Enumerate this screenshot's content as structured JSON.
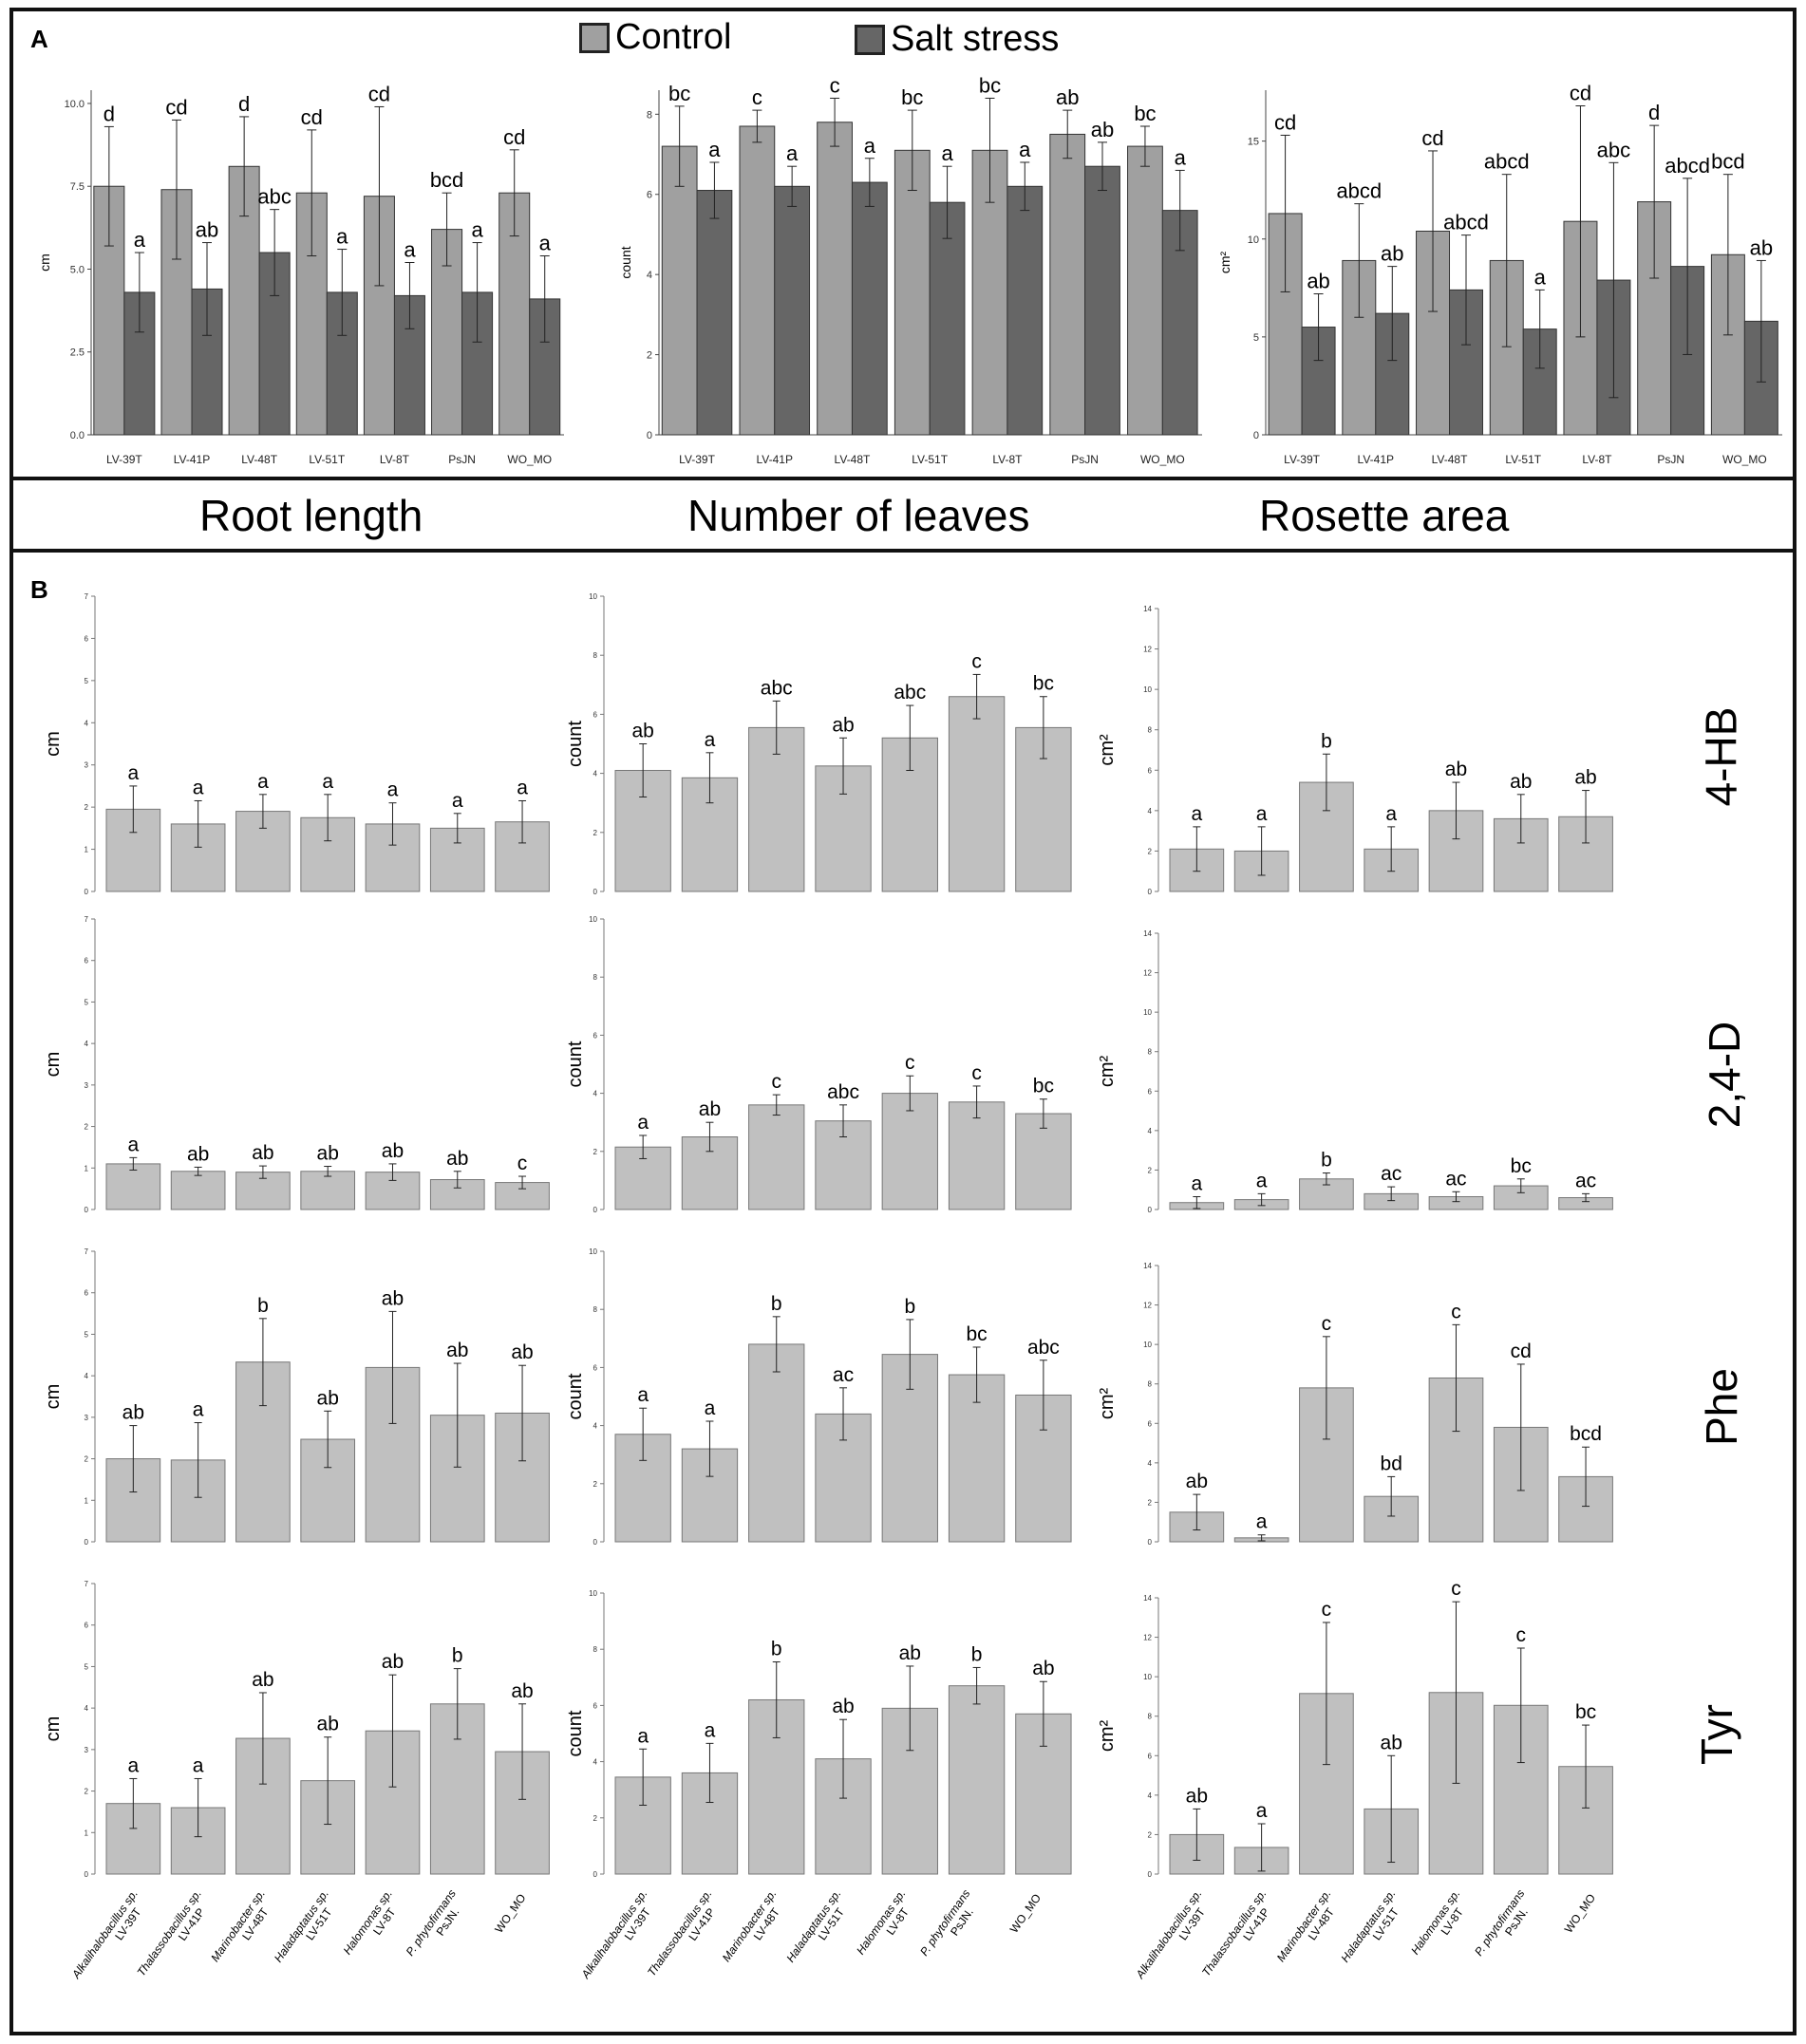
{
  "panel_a": {
    "letter": "A",
    "legend": {
      "control": "Control",
      "salt": "Salt stress"
    },
    "colors": {
      "control": "#a0a0a0",
      "salt": "#666666",
      "edge": "#333333"
    }
  },
  "titles": {
    "root": "Root length",
    "leaves": "Number of leaves",
    "rosette": "Rosette area"
  },
  "panel_b": {
    "letter": "B",
    "rows": [
      "4-HB",
      "2,4-D",
      "Phe",
      "Tyr"
    ],
    "colors": {
      "bar": "#c0c0c0",
      "edge": "#777777"
    }
  },
  "chart_data": [
    {
      "id": "A-root",
      "type": "bar",
      "title": "",
      "ylabel": "cm",
      "ylim": [
        0,
        10.4
      ],
      "yticks": [
        "0.0",
        "2.5",
        "5.0",
        "7.5",
        "10.0"
      ],
      "ytick_values": [
        0,
        2.5,
        5,
        7.5,
        10
      ],
      "categories": [
        "LV-39T",
        "LV-41P",
        "LV-48T",
        "LV-51T",
        "LV-8T",
        "PsJN",
        "WO_MO"
      ],
      "series": [
        {
          "name": "Control",
          "values": [
            7.5,
            7.4,
            8.1,
            7.3,
            7.2,
            6.2,
            7.3
          ],
          "errors": [
            1.8,
            2.1,
            1.5,
            1.9,
            2.7,
            1.1,
            1.3
          ],
          "labels": [
            "d",
            "cd",
            "d",
            "cd",
            "cd",
            "bcd",
            "cd"
          ]
        },
        {
          "name": "Salt stress",
          "values": [
            4.3,
            4.4,
            5.5,
            4.3,
            4.2,
            4.3,
            4.1
          ],
          "errors": [
            1.2,
            1.4,
            1.3,
            1.3,
            1.0,
            1.5,
            1.3
          ],
          "labels": [
            "a",
            "ab",
            "abc",
            "a",
            "a",
            "a",
            "a"
          ]
        }
      ]
    },
    {
      "id": "A-leaves",
      "type": "bar",
      "title": "",
      "ylabel": "count",
      "ylim": [
        0,
        8.6
      ],
      "yticks": [
        "0",
        "2",
        "4",
        "6",
        "8"
      ],
      "ytick_values": [
        0,
        2,
        4,
        6,
        8
      ],
      "categories": [
        "LV-39T",
        "LV-41P",
        "LV-48T",
        "LV-51T",
        "LV-8T",
        "PsJN",
        "WO_MO"
      ],
      "series": [
        {
          "name": "Control",
          "values": [
            7.2,
            7.7,
            7.8,
            7.1,
            7.1,
            7.5,
            7.2
          ],
          "errors": [
            1.0,
            0.4,
            0.6,
            1.0,
            1.3,
            0.6,
            0.5
          ],
          "labels": [
            "bc",
            "c",
            "c",
            "bc",
            "bc",
            "ab",
            "bc"
          ]
        },
        {
          "name": "Salt stress",
          "values": [
            6.1,
            6.2,
            6.3,
            5.8,
            6.2,
            6.7,
            5.6
          ],
          "errors": [
            0.7,
            0.5,
            0.6,
            0.9,
            0.6,
            0.6,
            1.0
          ],
          "labels": [
            "a",
            "a",
            "a",
            "a",
            "a",
            "ab",
            "a"
          ]
        }
      ]
    },
    {
      "id": "A-rosette",
      "type": "bar",
      "title": "",
      "ylabel": "cm²",
      "ylim": [
        0,
        17.6
      ],
      "yticks": [
        "0",
        "5",
        "10",
        "15"
      ],
      "ytick_values": [
        0,
        5,
        10,
        15
      ],
      "categories": [
        "LV-39T",
        "LV-41P",
        "LV-48T",
        "LV-51T",
        "LV-8T",
        "PsJN",
        "WO_MO"
      ],
      "series": [
        {
          "name": "Control",
          "values": [
            11.3,
            8.9,
            10.4,
            8.9,
            10.9,
            11.9,
            9.2
          ],
          "errors": [
            4.0,
            2.9,
            4.1,
            4.4,
            5.9,
            3.9,
            4.1
          ],
          "labels": [
            "cd",
            "abcd",
            "cd",
            "abcd",
            "cd",
            "d",
            "bcd"
          ]
        },
        {
          "name": "Salt stress",
          "values": [
            5.5,
            6.2,
            7.4,
            5.4,
            7.9,
            8.6,
            5.8
          ],
          "errors": [
            1.7,
            2.4,
            2.8,
            2.0,
            6.0,
            4.5,
            3.1
          ],
          "labels": [
            "ab",
            "ab",
            "abcd",
            "a",
            "abc",
            "abcd",
            "ab"
          ]
        }
      ]
    },
    {
      "id": "B-4HB-root",
      "type": "bar",
      "ylabel": "cm",
      "ylim": [
        0,
        7
      ],
      "yticks": [
        "0",
        "1",
        "2",
        "3",
        "4",
        "5",
        "6",
        "7"
      ],
      "ytick_values": [
        0,
        1,
        2,
        3,
        4,
        5,
        6,
        7
      ],
      "values": [
        1.95,
        1.6,
        1.9,
        1.75,
        1.6,
        1.5,
        1.65
      ],
      "errors": [
        0.55,
        0.55,
        0.4,
        0.55,
        0.5,
        0.35,
        0.5
      ],
      "labels": [
        "a",
        "a",
        "a",
        "a",
        "a",
        "a",
        "a"
      ]
    },
    {
      "id": "B-4HB-leaves",
      "type": "bar",
      "ylabel": "count",
      "ylim": [
        0,
        10
      ],
      "yticks": [
        "0",
        "2",
        "4",
        "6",
        "8",
        "10"
      ],
      "ytick_values": [
        0,
        2,
        4,
        6,
        8,
        10
      ],
      "values": [
        4.1,
        3.85,
        5.55,
        4.25,
        5.2,
        6.6,
        5.55
      ],
      "errors": [
        0.9,
        0.85,
        0.9,
        0.95,
        1.1,
        0.75,
        1.05
      ],
      "labels": [
        "ab",
        "a",
        "abc",
        "ab",
        "abc",
        "c",
        "bc"
      ]
    },
    {
      "id": "B-4HB-rosette",
      "type": "bar",
      "ylabel": "cm²",
      "ylim": [
        0,
        14
      ],
      "yticks": [
        "0",
        "2",
        "4",
        "6",
        "8",
        "10",
        "12",
        "14"
      ],
      "ytick_values": [
        0,
        2,
        4,
        6,
        8,
        10,
        12,
        14
      ],
      "values": [
        2.1,
        2.0,
        5.4,
        2.1,
        4.0,
        3.6,
        3.7
      ],
      "errors": [
        1.1,
        1.2,
        1.4,
        1.1,
        1.4,
        1.2,
        1.3
      ],
      "labels": [
        "a",
        "a",
        "b",
        "a",
        "ab",
        "ab",
        "ab"
      ]
    },
    {
      "id": "B-24D-root",
      "type": "bar",
      "ylabel": "cm",
      "ylim": [
        0,
        7
      ],
      "yticks": [
        "0",
        "1",
        "2",
        "3",
        "4",
        "5",
        "6",
        "7"
      ],
      "ytick_values": [
        0,
        1,
        2,
        3,
        4,
        5,
        6,
        7
      ],
      "values": [
        1.1,
        0.92,
        0.9,
        0.92,
        0.9,
        0.72,
        0.65
      ],
      "errors": [
        0.15,
        0.1,
        0.15,
        0.12,
        0.2,
        0.2,
        0.15
      ],
      "labels": [
        "a",
        "ab",
        "ab",
        "ab",
        "ab",
        "ab",
        "c"
      ]
    },
    {
      "id": "B-24D-leaves",
      "type": "bar",
      "ylabel": "count",
      "ylim": [
        0,
        10
      ],
      "yticks": [
        "0",
        "2",
        "4",
        "6",
        "8",
        "10"
      ],
      "ytick_values": [
        0,
        2,
        4,
        6,
        8,
        10
      ],
      "values": [
        2.15,
        2.5,
        3.6,
        3.05,
        4.0,
        3.7,
        3.3
      ],
      "errors": [
        0.4,
        0.5,
        0.35,
        0.55,
        0.6,
        0.55,
        0.5
      ],
      "labels": [
        "a",
        "ab",
        "c",
        "abc",
        "c",
        "c",
        "bc"
      ]
    },
    {
      "id": "B-24D-rosette",
      "type": "bar",
      "ylabel": "cm²",
      "ylim": [
        0,
        14
      ],
      "yticks": [
        "0",
        "2",
        "4",
        "6",
        "8",
        "10",
        "12",
        "14"
      ],
      "ytick_values": [
        0,
        2,
        4,
        6,
        8,
        10,
        12,
        14
      ],
      "values": [
        0.35,
        0.5,
        1.55,
        0.8,
        0.65,
        1.2,
        0.6
      ],
      "errors": [
        0.3,
        0.3,
        0.3,
        0.35,
        0.25,
        0.35,
        0.2
      ],
      "labels": [
        "a",
        "a",
        "b",
        "ac",
        "ac",
        "bc",
        "ac"
      ]
    },
    {
      "id": "B-Phe-root",
      "type": "bar",
      "ylabel": "cm",
      "ylim": [
        0,
        7
      ],
      "yticks": [
        "0",
        "1",
        "2",
        "3",
        "4",
        "5",
        "6",
        "7"
      ],
      "ytick_values": [
        0,
        1,
        2,
        3,
        4,
        5,
        6,
        7
      ],
      "values": [
        2.0,
        1.97,
        4.33,
        2.47,
        4.2,
        3.05,
        3.1
      ],
      "errors": [
        0.8,
        0.9,
        1.05,
        0.68,
        1.35,
        1.25,
        1.15
      ],
      "labels": [
        "ab",
        "a",
        "b",
        "ab",
        "ab",
        "ab",
        "ab"
      ]
    },
    {
      "id": "B-Phe-leaves",
      "type": "bar",
      "ylabel": "count",
      "ylim": [
        0,
        10
      ],
      "yticks": [
        "0",
        "2",
        "4",
        "6",
        "8",
        "10"
      ],
      "ytick_values": [
        0,
        2,
        4,
        6,
        8,
        10
      ],
      "values": [
        3.7,
        3.2,
        6.8,
        4.4,
        6.45,
        5.75,
        5.05
      ],
      "errors": [
        0.9,
        0.95,
        0.95,
        0.9,
        1.2,
        0.95,
        1.2
      ],
      "labels": [
        "a",
        "a",
        "b",
        "ac",
        "b",
        "bc",
        "abc"
      ]
    },
    {
      "id": "B-Phe-rosette",
      "type": "bar",
      "ylabel": "cm²",
      "ylim": [
        0,
        14
      ],
      "yticks": [
        "0",
        "2",
        "4",
        "6",
        "8",
        "10",
        "12",
        "14"
      ],
      "ytick_values": [
        0,
        2,
        4,
        6,
        8,
        10,
        12,
        14
      ],
      "values": [
        1.5,
        0.2,
        7.8,
        2.3,
        8.3,
        5.8,
        3.3
      ],
      "errors": [
        0.9,
        0.15,
        2.6,
        1.0,
        2.7,
        3.2,
        1.5
      ],
      "labels": [
        "ab",
        "a",
        "c",
        "bd",
        "c",
        "cd",
        "bcd"
      ]
    },
    {
      "id": "B-Tyr-root",
      "type": "bar",
      "ylabel": "cm",
      "ylim": [
        0,
        7
      ],
      "yticks": [
        "0",
        "1",
        "2",
        "3",
        "4",
        "5",
        "6",
        "7"
      ],
      "ytick_values": [
        0,
        1,
        2,
        3,
        4,
        5,
        6,
        7
      ],
      "values": [
        1.7,
        1.6,
        3.27,
        2.25,
        3.45,
        4.1,
        2.95
      ],
      "errors": [
        0.6,
        0.7,
        1.1,
        1.05,
        1.35,
        0.85,
        1.15
      ],
      "labels": [
        "a",
        "a",
        "ab",
        "ab",
        "ab",
        "b",
        "ab"
      ]
    },
    {
      "id": "B-Tyr-leaves",
      "type": "bar",
      "ylabel": "count",
      "ylim": [
        0,
        10
      ],
      "yticks": [
        "0",
        "2",
        "4",
        "6",
        "8",
        "10"
      ],
      "ytick_values": [
        0,
        2,
        4,
        6,
        8,
        10
      ],
      "values": [
        3.45,
        3.6,
        6.2,
        4.1,
        5.9,
        6.7,
        5.7
      ],
      "errors": [
        1.0,
        1.05,
        1.35,
        1.4,
        1.5,
        0.65,
        1.15
      ],
      "labels": [
        "a",
        "a",
        "b",
        "ab",
        "ab",
        "b",
        "ab"
      ]
    },
    {
      "id": "B-Tyr-rosette",
      "type": "bar",
      "ylabel": "cm²",
      "ylim": [
        0,
        14
      ],
      "yticks": [
        "0",
        "2",
        "4",
        "6",
        "8",
        "10",
        "12",
        "14"
      ],
      "ytick_values": [
        0,
        2,
        4,
        6,
        8,
        10,
        12,
        14
      ],
      "values": [
        2.0,
        1.35,
        9.15,
        3.3,
        9.2,
        8.55,
        5.45
      ],
      "errors": [
        1.3,
        1.2,
        3.6,
        2.7,
        4.6,
        2.9,
        2.1
      ],
      "labels": [
        "ab",
        "a",
        "c",
        "ab",
        "c",
        "c",
        "bc"
      ]
    }
  ],
  "species_labels": [
    {
      "name": "Alkalihalobacillus sp.",
      "code": "LV-39T"
    },
    {
      "name": "Thalassobacillus sp.",
      "code": "LV-41P"
    },
    {
      "name": "Marinobacter sp.",
      "code": "LV-48T"
    },
    {
      "name": "Haladaptatus sp.",
      "code": "LV-51T"
    },
    {
      "name": "Halomonas sp.",
      "code": "LV-8T"
    },
    {
      "name": "P. phytofirmans",
      "code": "PsJN."
    },
    {
      "name": "",
      "code": "WO_MO"
    }
  ]
}
